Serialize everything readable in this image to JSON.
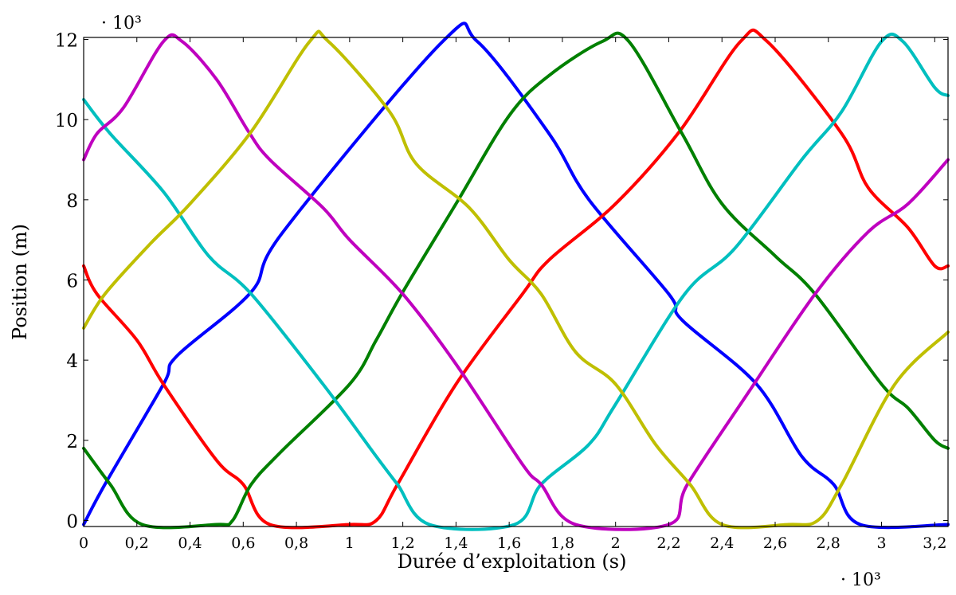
{
  "chart_data": {
    "type": "line",
    "xlabel": "Durée d’exploitation (s)",
    "ylabel": "Position (m)",
    "x_multiplier": "· 10³",
    "y_multiplier": "· 10³",
    "xlim": [
      0,
      3.25
    ],
    "ylim": [
      -0.15,
      12.05
    ],
    "x_unit_scale": 1000,
    "y_unit_scale": 1000,
    "xticks": [
      {
        "value": 0,
        "label": "0"
      },
      {
        "value": 0.2,
        "label": "0,2"
      },
      {
        "value": 0.4,
        "label": "0,4"
      },
      {
        "value": 0.6,
        "label": "0,6"
      },
      {
        "value": 0.8,
        "label": "0,8"
      },
      {
        "value": 1.0,
        "label": "1"
      },
      {
        "value": 1.2,
        "label": "1,2"
      },
      {
        "value": 1.4,
        "label": "1,4"
      },
      {
        "value": 1.6,
        "label": "1,6"
      },
      {
        "value": 1.8,
        "label": "1,8"
      },
      {
        "value": 2.0,
        "label": "2"
      },
      {
        "value": 2.2,
        "label": "2,2"
      },
      {
        "value": 2.4,
        "label": "2,4"
      },
      {
        "value": 2.6,
        "label": "2,6"
      },
      {
        "value": 2.8,
        "label": "2,8"
      },
      {
        "value": 3.0,
        "label": "3"
      },
      {
        "value": 3.2,
        "label": "3,2"
      }
    ],
    "yticks": [
      {
        "value": 0,
        "label": "0"
      },
      {
        "value": 2,
        "label": "2"
      },
      {
        "value": 4,
        "label": "4"
      },
      {
        "value": 6,
        "label": "6"
      },
      {
        "value": 8,
        "label": "8"
      },
      {
        "value": 10,
        "label": "10"
      },
      {
        "value": 12,
        "label": "12"
      }
    ],
    "grid": false,
    "legend": "none",
    "series": [
      {
        "color": "#0000ff",
        "x": [
          0.0,
          0.08,
          0.3,
          0.35,
          0.63,
          0.75,
          1.35,
          1.48,
          1.75,
          1.9,
          2.2,
          2.25,
          2.53,
          2.7,
          2.82,
          2.92,
          3.25
        ],
        "y": [
          -0.1,
          0.9,
          3.4,
          4.1,
          5.7,
          7.2,
          11.95,
          11.95,
          9.65,
          8.0,
          5.65,
          5.0,
          3.4,
          1.6,
          0.9,
          -0.1,
          -0.1
        ]
      },
      {
        "color": "#ff0000",
        "x": [
          0.0,
          0.05,
          0.2,
          0.3,
          0.5,
          0.6,
          0.7,
          1.0,
          1.1,
          1.18,
          1.4,
          1.65,
          1.75,
          2.0,
          2.24,
          2.47,
          2.57,
          2.85,
          2.95,
          3.1,
          3.2,
          3.25
        ],
        "y": [
          6.35,
          5.65,
          4.5,
          3.4,
          1.5,
          0.9,
          -0.1,
          -0.1,
          0.0,
          0.9,
          3.4,
          5.65,
          6.5,
          7.9,
          9.7,
          11.95,
          11.95,
          9.65,
          8.3,
          7.3,
          6.35,
          6.35
        ]
      },
      {
        "color": "#008000",
        "x": [
          0.0,
          0.1,
          0.22,
          0.5,
          0.56,
          0.63,
          0.74,
          1.0,
          1.1,
          1.2,
          1.4,
          1.6,
          1.75,
          1.95,
          2.05,
          2.25,
          2.4,
          2.6,
          2.75,
          3.0,
          3.1,
          3.2,
          3.25
        ],
        "y": [
          1.8,
          0.9,
          -0.1,
          -0.1,
          0.0,
          0.9,
          1.7,
          3.4,
          4.5,
          5.7,
          7.9,
          10.1,
          11.1,
          11.95,
          11.95,
          9.65,
          7.9,
          6.6,
          5.65,
          3.4,
          2.8,
          2.0,
          1.8
        ]
      },
      {
        "color": "#00bfbf",
        "x": [
          0.0,
          0.1,
          0.3,
          0.47,
          0.63,
          0.9,
          1.1,
          1.18,
          1.3,
          1.62,
          1.72,
          1.9,
          2.0,
          2.26,
          2.45,
          2.7,
          2.85,
          3.0,
          3.08,
          3.2,
          3.25
        ],
        "y": [
          10.5,
          9.65,
          8.2,
          6.6,
          5.65,
          3.4,
          1.6,
          0.9,
          -0.1,
          -0.1,
          0.9,
          1.9,
          2.9,
          5.65,
          6.8,
          9.0,
          10.2,
          11.95,
          11.95,
          10.8,
          10.6
        ]
      },
      {
        "color": "#bf00bf",
        "x": [
          0.0,
          0.05,
          0.15,
          0.3,
          0.37,
          0.5,
          0.62,
          0.7,
          0.9,
          1.0,
          1.2,
          1.4,
          1.65,
          1.72,
          1.85,
          2.2,
          2.27,
          2.5,
          2.75,
          2.95,
          3.1,
          3.25
        ],
        "y": [
          9.0,
          9.65,
          10.3,
          11.95,
          11.95,
          11.0,
          9.7,
          9.0,
          7.8,
          7.0,
          5.65,
          3.9,
          1.4,
          0.9,
          -0.1,
          -0.1,
          0.9,
          3.2,
          5.65,
          7.2,
          7.9,
          9.0
        ]
      },
      {
        "color": "#bfbf00",
        "x": [
          0.0,
          0.08,
          0.25,
          0.4,
          0.63,
          0.85,
          0.92,
          1.15,
          1.25,
          1.45,
          1.6,
          1.72,
          1.85,
          2.0,
          2.15,
          2.28,
          2.4,
          2.65,
          2.76,
          2.85,
          3.05,
          3.25
        ],
        "y": [
          4.8,
          5.65,
          6.9,
          7.9,
          9.7,
          11.95,
          11.95,
          10.2,
          8.9,
          7.8,
          6.5,
          5.65,
          4.2,
          3.4,
          1.9,
          0.9,
          -0.1,
          -0.1,
          0.0,
          0.9,
          3.4,
          4.7
        ]
      }
    ]
  }
}
